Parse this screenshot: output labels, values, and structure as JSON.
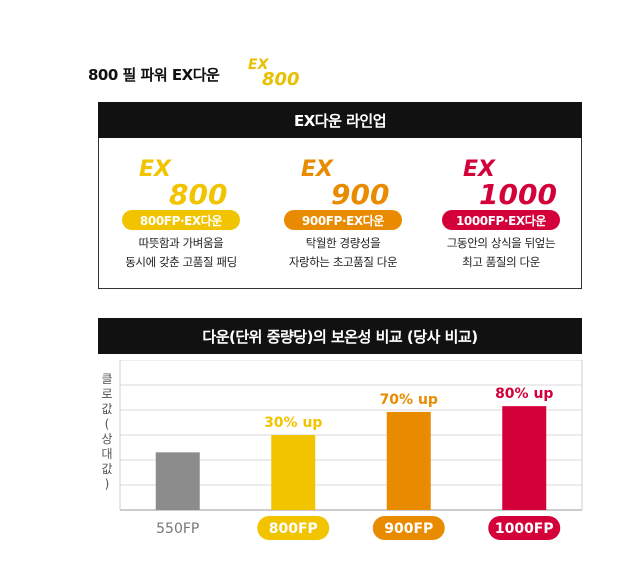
{
  "header": {
    "title": "800 필 파워 EX다운",
    "logo_ex": "EX",
    "logo_num": "800"
  },
  "lineup": {
    "title": "EX다운 라인업",
    "items": [
      {
        "logo_ex": "EX",
        "logo_num": "800",
        "badge": "800FP·EX다운",
        "desc": [
          "따뜻함과 가벼움을",
          "동시에 갖춘 고품질 패딩"
        ],
        "color": "#f2c400"
      },
      {
        "logo_ex": "EX",
        "logo_num": "900",
        "badge": "900FP·EX다운",
        "desc": [
          "탁월한 경량성을",
          "자랑하는 초고품질 다운"
        ],
        "color": "#e98b00"
      },
      {
        "logo_ex": "EX",
        "logo_num": "1000",
        "badge": "1000FP·EX다운",
        "desc": [
          "그동안의 상식을 뒤엎는",
          "최고 품질의 다운"
        ],
        "color": "#d4003a"
      }
    ]
  },
  "comparison": {
    "title": "다운(단위 중량당)의 보온성 비교 (당사 비교)",
    "ylabel": [
      "클",
      "로",
      "값",
      "(",
      "상",
      "대",
      "값",
      ")"
    ]
  },
  "chart_data": {
    "type": "bar",
    "title": "다운(단위 중량당)의 보온성 비교 (당사 비교)",
    "ylabel": "클로값(상대값)",
    "categories": [
      "550FP",
      "800FP",
      "900FP",
      "1000FP"
    ],
    "values": [
      100,
      130,
      170,
      180
    ],
    "data_labels": [
      "",
      "30% up",
      "70% up",
      "80% up"
    ],
    "colors": [
      "#8c8c8c",
      "#f2c400",
      "#e98b00",
      "#d4003a"
    ],
    "ylim": [
      0,
      260
    ],
    "grid": true
  }
}
